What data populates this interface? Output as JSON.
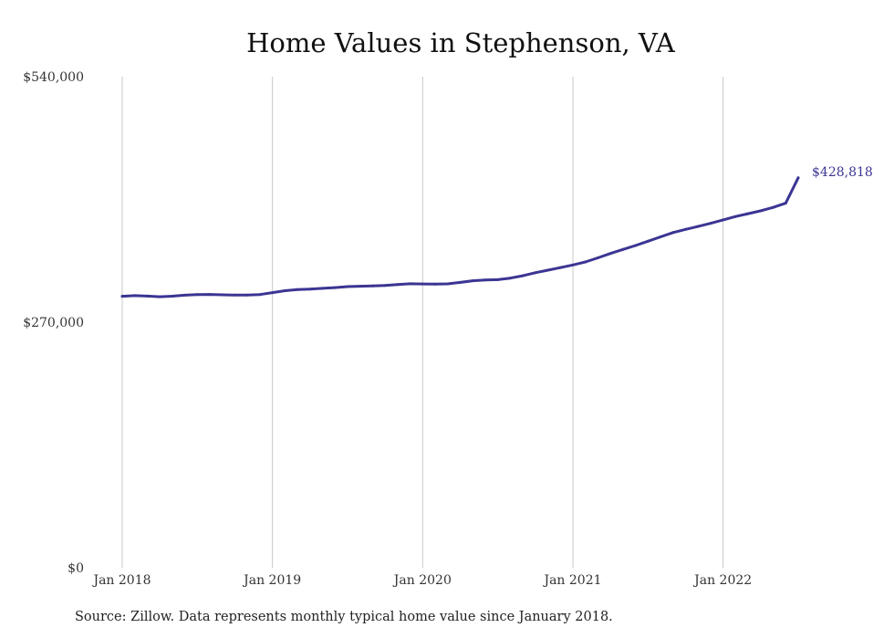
{
  "title": "Home Values in Stephenson, VA",
  "source": "Source: Zillow. Data represents monthly typical home value since January 2018.",
  "colors": {
    "line": "#3b3593",
    "grid": "#c8c8c8",
    "label": "#3b3593"
  },
  "chart_data": {
    "type": "line",
    "title": "Home Values in Stephenson, VA",
    "xlabel": "",
    "ylabel": "",
    "ylim": [
      0,
      540000
    ],
    "yticks": [
      {
        "value": 0,
        "label": "$0"
      },
      {
        "value": 270000,
        "label": "$270,000"
      },
      {
        "value": 540000,
        "label": "$540,000"
      }
    ],
    "xticks": [
      {
        "date": "2018-01",
        "label": "Jan 2018"
      },
      {
        "date": "2019-01",
        "label": "Jan 2019"
      },
      {
        "date": "2020-01",
        "label": "Jan 2020"
      },
      {
        "date": "2021-01",
        "label": "Jan 2021"
      },
      {
        "date": "2022-01",
        "label": "Jan 2022"
      }
    ],
    "xlim": [
      "2018-01",
      "2022-07"
    ],
    "grid": "vertical",
    "end_label": "$428,818",
    "series": [
      {
        "x": [
          "2018-01",
          "2018-02",
          "2018-03",
          "2018-04",
          "2018-05",
          "2018-06",
          "2018-07",
          "2018-08",
          "2018-09",
          "2018-10",
          "2018-11",
          "2018-12",
          "2019-01",
          "2019-02",
          "2019-03",
          "2019-04",
          "2019-05",
          "2019-06",
          "2019-07",
          "2019-08",
          "2019-09",
          "2019-10",
          "2019-11",
          "2019-12",
          "2020-01",
          "2020-02",
          "2020-03",
          "2020-04",
          "2020-05",
          "2020-06",
          "2020-07",
          "2020-08",
          "2020-09",
          "2020-10",
          "2020-11",
          "2020-12",
          "2021-01",
          "2021-02",
          "2021-03",
          "2021-04",
          "2021-05",
          "2021-06",
          "2021-07",
          "2021-08",
          "2021-09",
          "2021-10",
          "2021-11",
          "2021-12",
          "2022-01",
          "2022-02",
          "2022-03",
          "2022-04",
          "2022-05",
          "2022-06",
          "2022-07"
        ],
        "values": [
          298500,
          299200,
          298700,
          298000,
          298600,
          299700,
          300300,
          300500,
          300100,
          299800,
          299900,
          300400,
          302500,
          304600,
          305800,
          306300,
          307200,
          308000,
          309100,
          309500,
          309900,
          310500,
          311400,
          312300,
          312100,
          312000,
          312200,
          313800,
          315600,
          316400,
          316800,
          318500,
          321100,
          324400,
          327200,
          330000,
          332900,
          336200,
          340800,
          345600,
          350000,
          354300,
          359000,
          363800,
          368600,
          372100,
          375300,
          378700,
          382500,
          386200,
          389300,
          392500,
          396300,
          400900,
          428818
        ]
      }
    ]
  }
}
